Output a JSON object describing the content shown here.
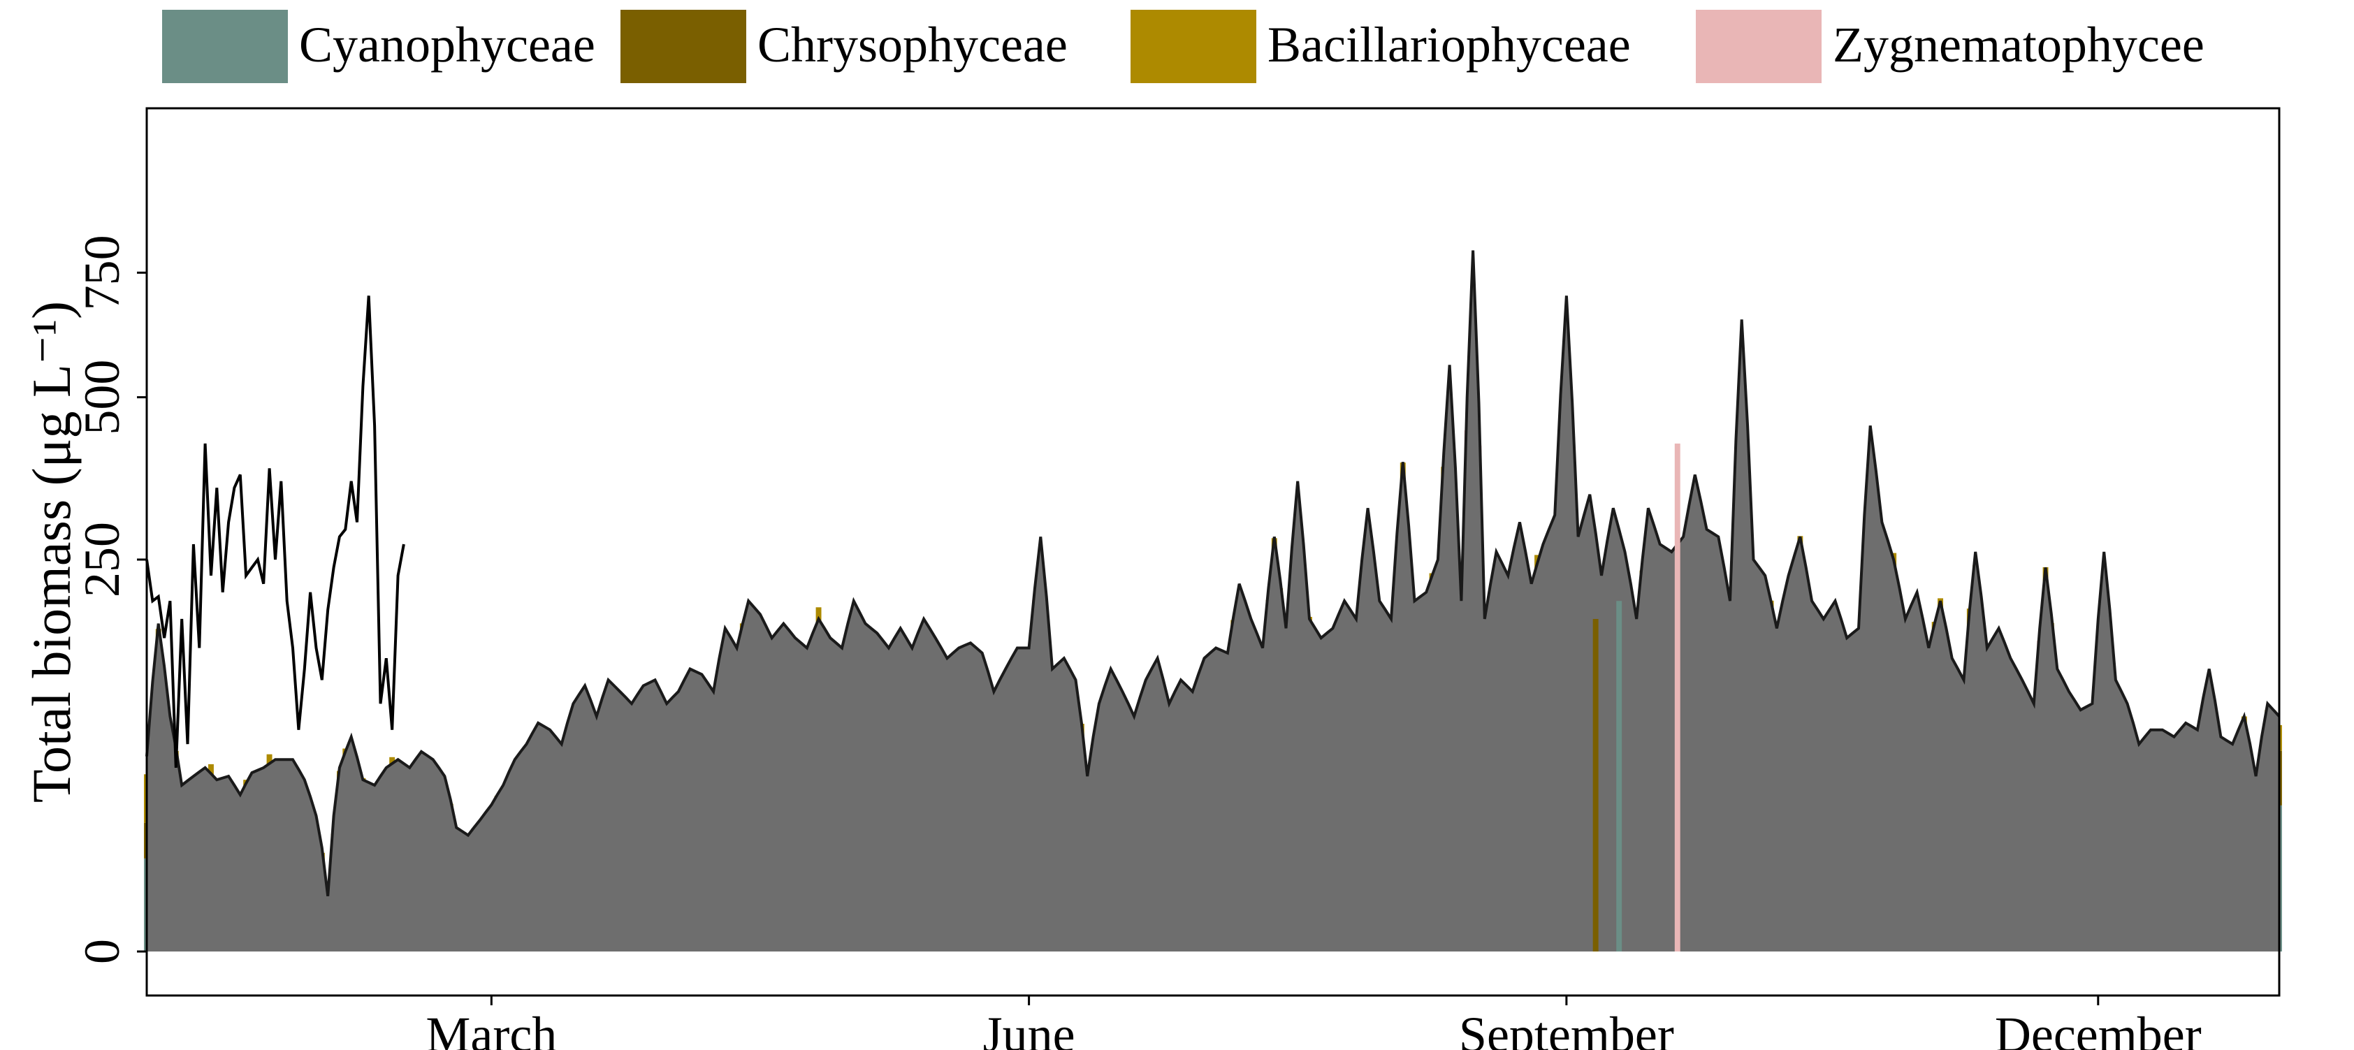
{
  "chart_data": {
    "type": "bar",
    "stacked": true,
    "ylabel": "Total biomass (μg L⁻¹)",
    "xlabel": "",
    "yscale": "sqrt",
    "ylim": [
      0,
      1000
    ],
    "yticks": [
      0,
      250,
      500,
      750
    ],
    "ytick_labels": [
      "0",
      "250",
      "500",
      "750"
    ],
    "x_range": [
      0,
      365
    ],
    "xticks": [
      {
        "label": "March",
        "day": 59
      },
      {
        "label": "June",
        "day": 151
      },
      {
        "label": "September",
        "day": 243
      },
      {
        "label": "December",
        "day": 334
      }
    ],
    "legend_position": "top",
    "grid": false,
    "legend": [
      {
        "name": "Cyanophyceae",
        "color": "#6b8e86"
      },
      {
        "name": "Chrysophyceae",
        "color": "#7a5f00"
      },
      {
        "name": "Bacillariophyceae",
        "color": "#ad8a00"
      },
      {
        "name": "Zygnematophycee",
        "color": "#e9b6b6"
      }
    ],
    "envelope_color": "#6e6e6e",
    "series": [
      {
        "name": "Cyanophyceae",
        "color": "#6b8e86"
      },
      {
        "name": "Chrysophyceae",
        "color": "#7a5f00"
      },
      {
        "name": "Bacillariophyceae",
        "color": "#ad8a00"
      },
      {
        "name": "Zygnematophycee",
        "color": "#e9b6b6"
      }
    ],
    "total_anchors": [
      [
        0,
        62
      ],
      [
        2,
        175
      ],
      [
        4,
        90
      ],
      [
        6,
        45
      ],
      [
        8,
        50
      ],
      [
        10,
        55
      ],
      [
        12,
        48
      ],
      [
        14,
        50
      ],
      [
        16,
        40
      ],
      [
        18,
        52
      ],
      [
        20,
        55
      ],
      [
        22,
        60
      ],
      [
        25,
        60
      ],
      [
        27,
        48
      ],
      [
        29,
        30
      ],
      [
        31,
        5
      ],
      [
        33,
        55
      ],
      [
        35,
        75
      ],
      [
        37,
        48
      ],
      [
        39,
        45
      ],
      [
        41,
        55
      ],
      [
        43,
        60
      ],
      [
        45,
        55
      ],
      [
        47,
        65
      ],
      [
        49,
        60
      ],
      [
        51,
        50
      ],
      [
        53,
        25
      ],
      [
        55,
        22
      ],
      [
        57,
        28
      ],
      [
        59,
        35
      ],
      [
        61,
        45
      ],
      [
        63,
        60
      ],
      [
        65,
        70
      ],
      [
        67,
        85
      ],
      [
        69,
        80
      ],
      [
        71,
        70
      ],
      [
        73,
        100
      ],
      [
        75,
        115
      ],
      [
        77,
        90
      ],
      [
        79,
        120
      ],
      [
        81,
        110
      ],
      [
        83,
        100
      ],
      [
        85,
        115
      ],
      [
        87,
        120
      ],
      [
        89,
        100
      ],
      [
        91,
        110
      ],
      [
        93,
        130
      ],
      [
        95,
        125
      ],
      [
        97,
        110
      ],
      [
        99,
        170
      ],
      [
        101,
        150
      ],
      [
        103,
        200
      ],
      [
        105,
        185
      ],
      [
        107,
        160
      ],
      [
        109,
        175
      ],
      [
        111,
        160
      ],
      [
        113,
        150
      ],
      [
        115,
        180
      ],
      [
        117,
        160
      ],
      [
        119,
        150
      ],
      [
        121,
        200
      ],
      [
        123,
        175
      ],
      [
        125,
        165
      ],
      [
        127,
        150
      ],
      [
        129,
        170
      ],
      [
        131,
        150
      ],
      [
        133,
        180
      ],
      [
        135,
        160
      ],
      [
        137,
        140
      ],
      [
        139,
        150
      ],
      [
        141,
        155
      ],
      [
        143,
        145
      ],
      [
        145,
        110
      ],
      [
        147,
        130
      ],
      [
        149,
        150
      ],
      [
        151,
        150
      ],
      [
        153,
        280
      ],
      [
        155,
        130
      ],
      [
        157,
        140
      ],
      [
        159,
        120
      ],
      [
        161,
        50
      ],
      [
        163,
        100
      ],
      [
        165,
        130
      ],
      [
        167,
        110
      ],
      [
        169,
        90
      ],
      [
        171,
        120
      ],
      [
        173,
        140
      ],
      [
        175,
        100
      ],
      [
        177,
        120
      ],
      [
        179,
        110
      ],
      [
        181,
        140
      ],
      [
        183,
        150
      ],
      [
        185,
        145
      ],
      [
        187,
        220
      ],
      [
        189,
        180
      ],
      [
        191,
        150
      ],
      [
        193,
        280
      ],
      [
        195,
        170
      ],
      [
        197,
        360
      ],
      [
        199,
        180
      ],
      [
        201,
        160
      ],
      [
        203,
        170
      ],
      [
        205,
        200
      ],
      [
        207,
        180
      ],
      [
        209,
        320
      ],
      [
        211,
        200
      ],
      [
        213,
        180
      ],
      [
        215,
        390
      ],
      [
        217,
        200
      ],
      [
        219,
        210
      ],
      [
        221,
        250
      ],
      [
        223,
        560
      ],
      [
        225,
        200
      ],
      [
        227,
        800
      ],
      [
        229,
        180
      ],
      [
        231,
        260
      ],
      [
        233,
        230
      ],
      [
        235,
        300
      ],
      [
        237,
        220
      ],
      [
        239,
        270
      ],
      [
        241,
        310
      ],
      [
        243,
        700
      ],
      [
        245,
        280
      ],
      [
        247,
        340
      ],
      [
        249,
        230
      ],
      [
        251,
        320
      ],
      [
        253,
        260
      ],
      [
        255,
        180
      ],
      [
        257,
        320
      ],
      [
        259,
        270
      ],
      [
        261,
        260
      ],
      [
        263,
        280
      ],
      [
        265,
        370
      ],
      [
        267,
        290
      ],
      [
        269,
        280
      ],
      [
        271,
        200
      ],
      [
        273,
        650
      ],
      [
        275,
        250
      ],
      [
        277,
        230
      ],
      [
        279,
        170
      ],
      [
        281,
        230
      ],
      [
        283,
        280
      ],
      [
        285,
        200
      ],
      [
        287,
        180
      ],
      [
        289,
        200
      ],
      [
        291,
        160
      ],
      [
        293,
        170
      ],
      [
        295,
        450
      ],
      [
        297,
        300
      ],
      [
        299,
        250
      ],
      [
        301,
        180
      ],
      [
        303,
        210
      ],
      [
        305,
        150
      ],
      [
        307,
        200
      ],
      [
        309,
        140
      ],
      [
        311,
        120
      ],
      [
        313,
        260
      ],
      [
        315,
        150
      ],
      [
        317,
        170
      ],
      [
        319,
        140
      ],
      [
        321,
        120
      ],
      [
        323,
        100
      ],
      [
        325,
        240
      ],
      [
        327,
        130
      ],
      [
        329,
        110
      ],
      [
        331,
        95
      ],
      [
        333,
        100
      ],
      [
        335,
        260
      ],
      [
        337,
        120
      ],
      [
        339,
        100
      ],
      [
        341,
        70
      ],
      [
        343,
        80
      ],
      [
        345,
        80
      ],
      [
        347,
        75
      ],
      [
        349,
        85
      ],
      [
        351,
        80
      ],
      [
        353,
        130
      ],
      [
        355,
        75
      ],
      [
        357,
        70
      ],
      [
        359,
        90
      ],
      [
        361,
        50
      ],
      [
        363,
        100
      ],
      [
        365,
        90
      ]
    ],
    "unstacked_line": [
      [
        0,
        250
      ],
      [
        1,
        200
      ],
      [
        2,
        205
      ],
      [
        3,
        160
      ],
      [
        4,
        200
      ],
      [
        5,
        55
      ],
      [
        6,
        180
      ],
      [
        7,
        70
      ],
      [
        8,
        270
      ],
      [
        9,
        150
      ],
      [
        10,
        420
      ],
      [
        11,
        230
      ],
      [
        12,
        350
      ],
      [
        13,
        210
      ],
      [
        14,
        300
      ],
      [
        15,
        350
      ],
      [
        16,
        370
      ],
      [
        17,
        230
      ],
      [
        18,
        240
      ],
      [
        19,
        250
      ],
      [
        20,
        220
      ],
      [
        21,
        380
      ],
      [
        22,
        250
      ],
      [
        23,
        360
      ],
      [
        24,
        200
      ],
      [
        25,
        150
      ],
      [
        26,
        80
      ],
      [
        27,
        130
      ],
      [
        28,
        210
      ],
      [
        29,
        150
      ],
      [
        30,
        120
      ],
      [
        31,
        190
      ],
      [
        32,
        240
      ],
      [
        33,
        280
      ],
      [
        34,
        290
      ],
      [
        35,
        360
      ],
      [
        36,
        300
      ],
      [
        37,
        520
      ],
      [
        38,
        700
      ],
      [
        39,
        450
      ],
      [
        40,
        100
      ],
      [
        41,
        140
      ],
      [
        42,
        80
      ],
      [
        43,
        230
      ],
      [
        44,
        270
      ]
    ],
    "note_bar": [
      [
        248,
        180,
        "#7a5f00"
      ],
      [
        252,
        200,
        "#6b8e86"
      ],
      [
        262,
        420,
        "#e9b6b6"
      ]
    ]
  }
}
